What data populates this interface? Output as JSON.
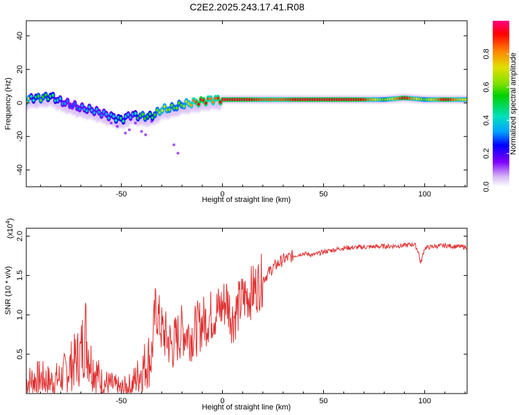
{
  "title": "C2E2.2025.243.17.41.R08",
  "chart_data": [
    {
      "type": "heatmap",
      "xlabel": "Height of straight line (km)",
      "ylabel": "Frequency (Hz)",
      "xlim": [
        -97,
        121
      ],
      "ylim": [
        -50,
        49
      ],
      "xticks": [
        -50,
        0,
        50,
        100
      ],
      "yticks": [
        -40,
        -20,
        0,
        20,
        40
      ],
      "colorbar": {
        "label": "Normalized spectral amplitude",
        "range": [
          0,
          1
        ],
        "ticks": [
          "0.0",
          "0.2",
          "0.4",
          "0.6",
          "0.8"
        ],
        "colors": [
          "#ffffff",
          "#d6b8f5",
          "#8000ff",
          "#0000ff",
          "#00a0ff",
          "#00e0c0",
          "#00d000",
          "#80e000",
          "#e0e000",
          "#ff8000",
          "#ff0000",
          "#ff0080"
        ]
      },
      "ridge": {
        "x": [
          -95,
          -90,
          -85,
          -80,
          -75,
          -70,
          -65,
          -60,
          -55,
          -50,
          -45,
          -40,
          -35,
          -30,
          -25,
          -20,
          -15,
          -10,
          -5,
          0,
          10,
          20,
          30,
          40,
          50,
          60,
          70,
          80,
          90,
          100,
          110,
          120
        ],
        "y": [
          3,
          3,
          4,
          1,
          -1,
          -3,
          -4,
          -6,
          -8,
          -10,
          -7,
          -8,
          -8,
          -4,
          -3,
          -1,
          0,
          1,
          2,
          2,
          2,
          2,
          2,
          2,
          2,
          2,
          2,
          2,
          3,
          2,
          2,
          2
        ],
        "amplitude": [
          0.4,
          0.6,
          0.5,
          0.4,
          0.3,
          0.35,
          0.4,
          0.35,
          0.4,
          0.5,
          0.35,
          0.6,
          0.5,
          0.7,
          0.6,
          0.6,
          0.8,
          0.95,
          0.8,
          0.95,
          0.95,
          0.85,
          0.85,
          0.95,
          0.95,
          0.95,
          0.9,
          0.6,
          0.95,
          0.6,
          0.95,
          0.7
        ]
      }
    },
    {
      "type": "line",
      "xlabel": "Height of straight line (km)",
      "ylabel": "SNR (10 * v/v)",
      "y_multiplier": "(x10^4)",
      "xlim": [
        -97,
        121
      ],
      "ylim": [
        0,
        2.1
      ],
      "xticks": [
        -50,
        0,
        50,
        100
      ],
      "yticks": [
        0.5,
        1.0,
        1.5,
        2.0
      ],
      "color": "#e03030",
      "series": [
        {
          "x": [
            -97,
            -90,
            -85,
            -80,
            -75,
            -70,
            -68,
            -65,
            -60,
            -55,
            -50,
            -45,
            -40,
            -35,
            -33,
            -30,
            -25,
            -20,
            -15,
            -10,
            -5,
            0,
            2,
            5,
            10,
            15,
            20,
            25,
            30,
            35,
            40,
            45,
            50,
            60,
            70,
            80,
            90,
            95,
            97,
            98,
            100,
            105,
            110,
            120
          ],
          "y": [
            0.15,
            0.2,
            0.15,
            0.2,
            0.35,
            0.5,
            0.8,
            0.4,
            0.15,
            0.1,
            0.05,
            0.1,
            0.3,
            0.5,
            1.1,
            0.8,
            0.6,
            0.8,
            0.75,
            0.9,
            1.0,
            1.1,
            1.2,
            0.95,
            1.2,
            1.3,
            1.45,
            1.6,
            1.7,
            1.75,
            1.78,
            1.76,
            1.8,
            1.85,
            1.86,
            1.87,
            1.88,
            1.9,
            1.8,
            1.65,
            1.85,
            1.87,
            1.88,
            1.86
          ]
        }
      ]
    }
  ]
}
